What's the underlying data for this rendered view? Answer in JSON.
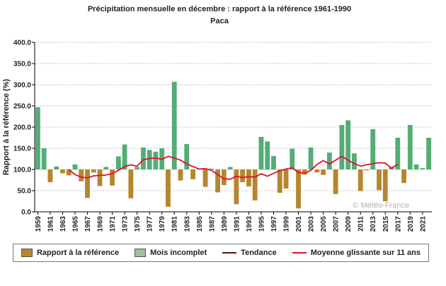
{
  "colors": {
    "above": "#55ac77",
    "below": "#b5862e",
    "incomplete": "#9bc39a",
    "trend": "#5a1010",
    "moving": "#e0102a",
    "grid": "#bfbfbf"
  },
  "credit": "© Météo-France",
  "legend": [
    {
      "label": "Rapport à la référence",
      "kind": "box",
      "color": "#b5862e"
    },
    {
      "label": "Mois incomplet",
      "kind": "box",
      "color": "#9bc39a"
    },
    {
      "label": "Tendance",
      "kind": "line",
      "color": "#5a1010"
    },
    {
      "label": "Moyenne glissante sur 11 ans",
      "kind": "line",
      "color": "#e0102a"
    }
  ],
  "chart_data": {
    "type": "bar",
    "title": "Précipitation mensuelle en décembre : rapport à la référence 1961-1990",
    "subtitle": "Paca",
    "xlabel": "",
    "ylabel": "Rapport à la référence (%)",
    "ylim": [
      0,
      400
    ],
    "yticks": [
      "0.0",
      "50.0",
      "100.0",
      "150.0",
      "200.0",
      "250.0",
      "300.0",
      "350.0",
      "400.0"
    ],
    "baseline": 100,
    "grid": true,
    "legend_position": "bottom",
    "x_tick_labels": [
      "1959",
      "1961",
      "1963",
      "1965",
      "1967",
      "1969",
      "1971",
      "1973",
      "1975",
      "1977",
      "1979",
      "1981",
      "1983",
      "1985",
      "1987",
      "1989",
      "1991",
      "1993",
      "1995",
      "1997",
      "1999",
      "2001",
      "2003",
      "2005",
      "2007",
      "2009",
      "2011",
      "2013",
      "2015",
      "2017",
      "2019",
      "2021"
    ],
    "years": [
      1959,
      1960,
      1961,
      1962,
      1963,
      1964,
      1965,
      1966,
      1967,
      1968,
      1969,
      1970,
      1971,
      1972,
      1973,
      1974,
      1975,
      1976,
      1977,
      1978,
      1979,
      1980,
      1981,
      1982,
      1983,
      1984,
      1985,
      1986,
      1987,
      1988,
      1989,
      1990,
      1991,
      1992,
      1993,
      1994,
      1995,
      1996,
      1997,
      1998,
      1999,
      2000,
      2001,
      2002,
      2003,
      2004,
      2005,
      2006,
      2007,
      2008,
      2009,
      2010,
      2011,
      2012,
      2013,
      2014,
      2015,
      2016,
      2017,
      2018,
      2019,
      2020,
      2021,
      2022
    ],
    "values": [
      247,
      150,
      70,
      107,
      91,
      86,
      112,
      72,
      33,
      93,
      61,
      106,
      62,
      131,
      159,
      32,
      106,
      152,
      146,
      142,
      150,
      12,
      307,
      74,
      160,
      77,
      101,
      59,
      102,
      46,
      63,
      106,
      18,
      70,
      60,
      27,
      177,
      166,
      132,
      45,
      55,
      149,
      8,
      88,
      152,
      93,
      87,
      140,
      42,
      205,
      216,
      138,
      49,
      98,
      195,
      51,
      25,
      106,
      175,
      68,
      205,
      112,
      103,
      175
    ],
    "moving_average": [
      {
        "x": 1964,
        "y": 100
      },
      {
        "x": 1965,
        "y": 88
      },
      {
        "x": 1966,
        "y": 82
      },
      {
        "x": 1967,
        "y": 80
      },
      {
        "x": 1968,
        "y": 85
      },
      {
        "x": 1969,
        "y": 86
      },
      {
        "x": 1970,
        "y": 87
      },
      {
        "x": 1971,
        "y": 90
      },
      {
        "x": 1972,
        "y": 98
      },
      {
        "x": 1973,
        "y": 107
      },
      {
        "x": 1974,
        "y": 111
      },
      {
        "x": 1975,
        "y": 108
      },
      {
        "x": 1976,
        "y": 123
      },
      {
        "x": 1977,
        "y": 126
      },
      {
        "x": 1978,
        "y": 127
      },
      {
        "x": 1979,
        "y": 124
      },
      {
        "x": 1980,
        "y": 131
      },
      {
        "x": 1981,
        "y": 127
      },
      {
        "x": 1982,
        "y": 122
      },
      {
        "x": 1983,
        "y": 113
      },
      {
        "x": 1984,
        "y": 107
      },
      {
        "x": 1985,
        "y": 101
      },
      {
        "x": 1986,
        "y": 102
      },
      {
        "x": 1987,
        "y": 98
      },
      {
        "x": 1988,
        "y": 88
      },
      {
        "x": 1989,
        "y": 78
      },
      {
        "x": 1990,
        "y": 77
      },
      {
        "x": 1991,
        "y": 84
      },
      {
        "x": 1992,
        "y": 81
      },
      {
        "x": 1993,
        "y": 83
      },
      {
        "x": 1994,
        "y": 82
      },
      {
        "x": 1995,
        "y": 90
      },
      {
        "x": 1996,
        "y": 84
      },
      {
        "x": 1997,
        "y": 91
      },
      {
        "x": 1998,
        "y": 97
      },
      {
        "x": 1999,
        "y": 101
      },
      {
        "x": 2000,
        "y": 104
      },
      {
        "x": 2001,
        "y": 93
      },
      {
        "x": 2002,
        "y": 91
      },
      {
        "x": 2003,
        "y": 98
      },
      {
        "x": 2004,
        "y": 112
      },
      {
        "x": 2005,
        "y": 121
      },
      {
        "x": 2006,
        "y": 113
      },
      {
        "x": 2007,
        "y": 122
      },
      {
        "x": 2008,
        "y": 131
      },
      {
        "x": 2009,
        "y": 122
      },
      {
        "x": 2010,
        "y": 114
      },
      {
        "x": 2011,
        "y": 108
      },
      {
        "x": 2012,
        "y": 111
      },
      {
        "x": 2013,
        "y": 114
      },
      {
        "x": 2014,
        "y": 116
      },
      {
        "x": 2015,
        "y": 115
      },
      {
        "x": 2016,
        "y": 103
      },
      {
        "x": 2017,
        "y": 112
      }
    ]
  }
}
